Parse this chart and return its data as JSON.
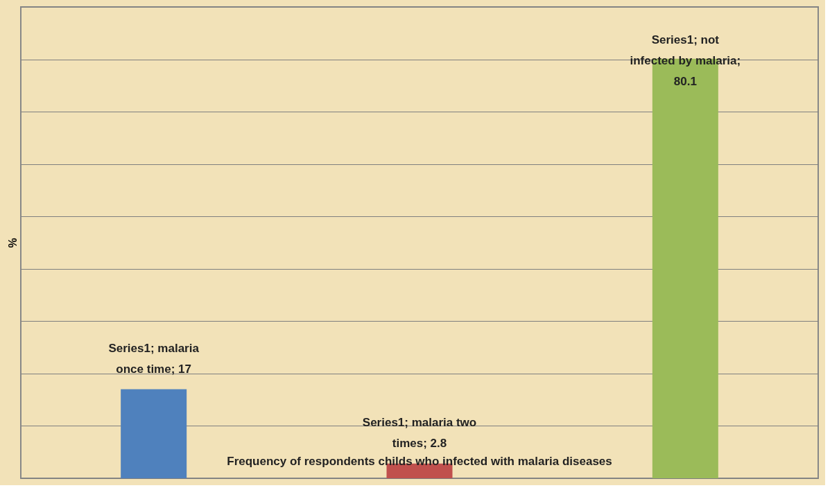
{
  "chart_data": {
    "type": "bar",
    "title": "Frequency of respondents childs who infected with malaria diseases",
    "ylabel": "%",
    "categories": [
      null,
      null,
      null
    ],
    "series": [
      {
        "values": [
          17,
          2.8,
          80.1
        ],
        "colors": [
          "#4f81bd",
          "#c0504d",
          "#9bbb59"
        ],
        "value_labels": [
          "Series1; malaria once time; 17",
          "Series1; malaria two times; 2.8",
          "Series1; not infected by malaria; 80.1"
        ]
      }
    ],
    "ylim": [
      0,
      90
    ],
    "yticks": [
      {
        "value": 0,
        "label": null
      },
      {
        "value": 10,
        "label": null
      },
      {
        "value": 20,
        "label": null
      },
      {
        "value": 30,
        "label": null
      },
      {
        "value": 40,
        "label": null
      },
      {
        "value": 50,
        "label": null
      },
      {
        "value": 60,
        "label": null
      },
      {
        "value": 70,
        "label": null
      },
      {
        "value": 80,
        "label": null
      },
      {
        "value": 90,
        "label": null
      }
    ],
    "grid": "y",
    "tick_labels": false
  }
}
